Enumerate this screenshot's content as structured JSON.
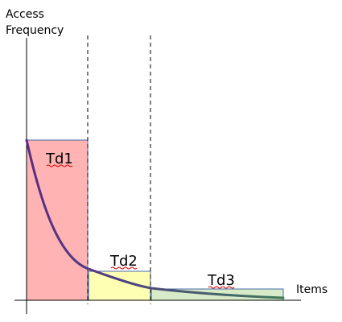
{
  "diagram": {
    "y_axis_label_line1": "Access",
    "y_axis_label_line2": "Frequency",
    "x_axis_label": "Items",
    "regions": [
      {
        "label": "Td1",
        "fill": "#ffb3b3",
        "stroke": "#4a6aa8"
      },
      {
        "label": "Td2",
        "fill": "#ffffb3",
        "stroke": "#4a6aa8"
      },
      {
        "label": "Td3",
        "fill": "#d8ebc8",
        "stroke": "#4a6aa8"
      }
    ],
    "curve": {
      "description_colors": {
        "start": "#5a2d82",
        "end": "#3f7a5a"
      }
    },
    "colors": {
      "axis": "#000000",
      "divider": "#000000",
      "spellcheck_underline": "#d40000"
    }
  }
}
